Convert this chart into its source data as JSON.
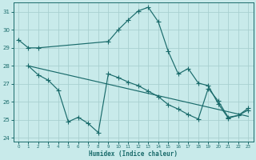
{
  "title": "",
  "xlabel": "Humidex (Indice chaleur)",
  "bg_color": "#c8eaea",
  "grid_color": "#a8d0d0",
  "line_color": "#1a6b6b",
  "xlim": [
    -0.5,
    23.5
  ],
  "ylim": [
    23.8,
    31.5
  ],
  "yticks": [
    24,
    25,
    26,
    27,
    28,
    29,
    30,
    31
  ],
  "xticks": [
    0,
    1,
    2,
    3,
    4,
    5,
    6,
    7,
    8,
    9,
    10,
    11,
    12,
    13,
    14,
    15,
    16,
    17,
    18,
    19,
    20,
    21,
    22,
    23
  ],
  "line1_x": [
    0,
    1,
    2,
    9,
    10,
    11,
    12,
    13,
    14,
    15,
    16,
    17,
    18,
    19,
    20,
    21,
    22,
    23
  ],
  "line1_y": [
    29.45,
    29.0,
    29.0,
    29.35,
    30.0,
    30.55,
    31.05,
    31.25,
    30.45,
    28.8,
    27.55,
    27.85,
    27.05,
    26.9,
    25.9,
    25.1,
    25.25,
    25.55
  ],
  "line2_x": [
    1,
    23
  ],
  "line2_y": [
    28.0,
    25.2
  ],
  "line3_x": [
    1,
    2,
    3,
    4,
    5,
    6,
    7,
    8,
    9,
    10,
    11,
    12,
    13,
    14,
    15,
    16,
    17,
    18,
    19,
    20,
    21,
    22,
    23
  ],
  "line3_y": [
    28.0,
    27.5,
    27.2,
    26.65,
    24.9,
    25.15,
    24.8,
    24.3,
    27.55,
    27.35,
    27.1,
    26.9,
    26.6,
    26.3,
    25.85,
    25.6,
    25.3,
    25.05,
    26.75,
    26.05,
    25.15,
    25.25,
    25.65
  ]
}
